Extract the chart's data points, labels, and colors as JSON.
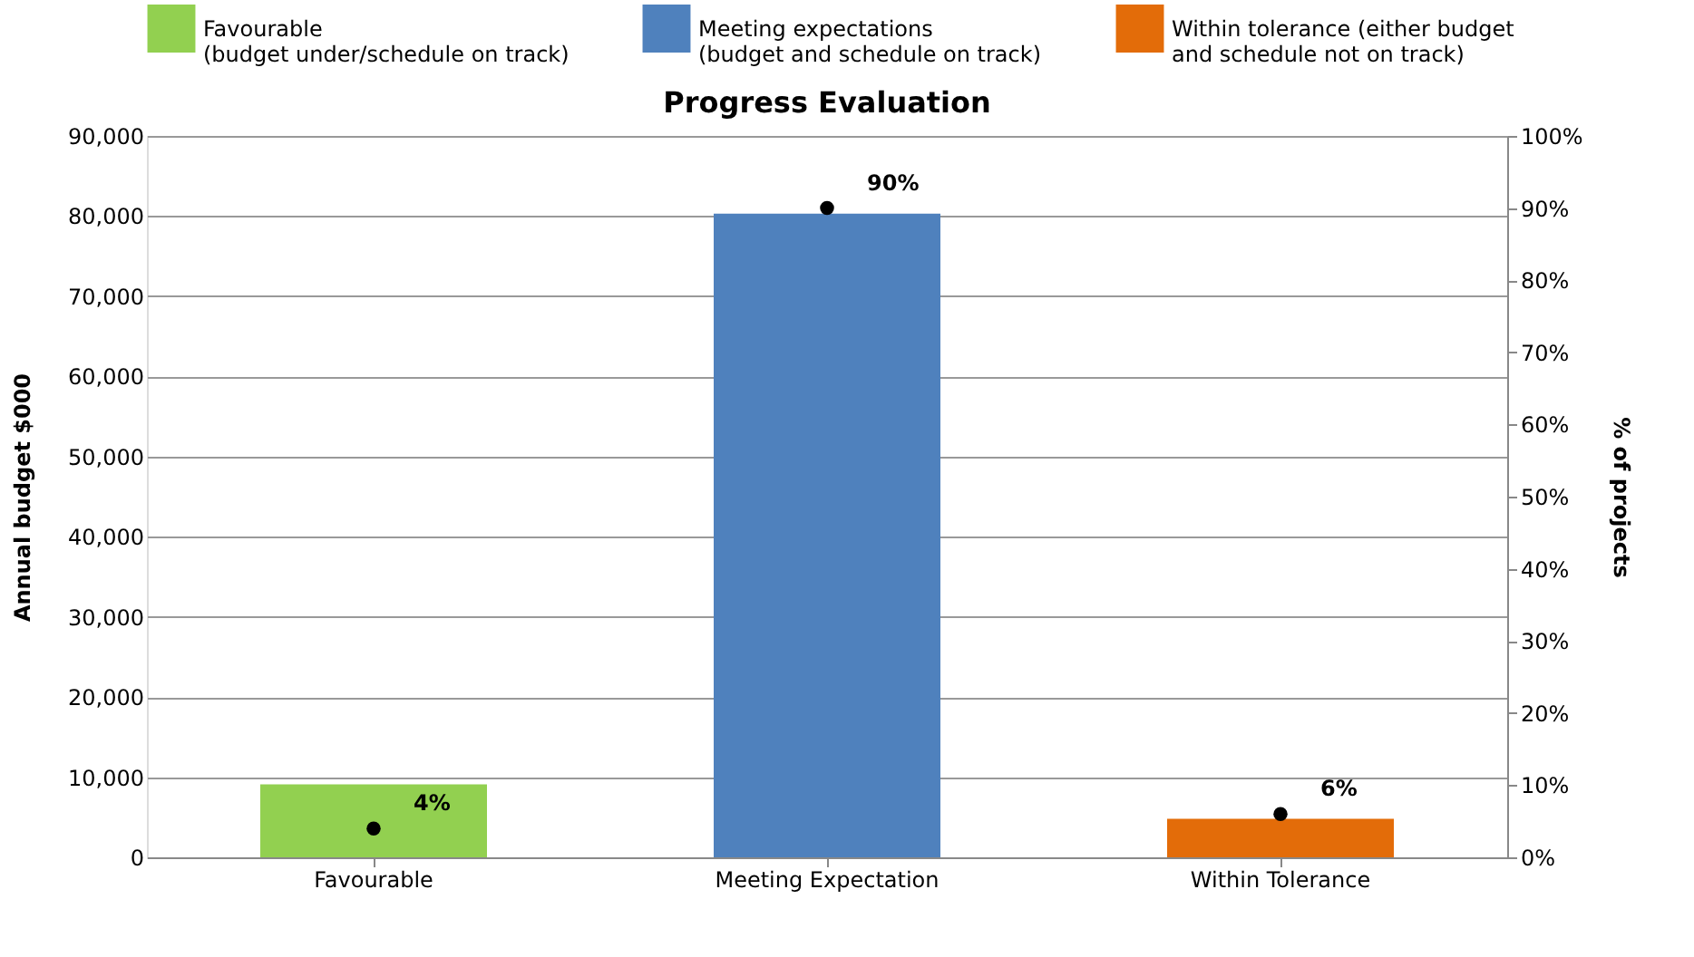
{
  "chart_data": {
    "type": "bar",
    "title": "Progress Evaluation",
    "ylabel": "Annual budget $000",
    "y2label": "% of projects",
    "categories": [
      "Favourable",
      "Meeting Expectation",
      "Within Tolerance"
    ],
    "series": [
      {
        "name": "Favourable\n(budget under/schedule on track)",
        "color": "#92d050",
        "values": [
          9100,
          null,
          null
        ]
      },
      {
        "name": "Meeting expectations\n(budget and schedule on track)",
        "color": "#4f81bd",
        "values": [
          null,
          80300,
          null
        ]
      },
      {
        "name": "Within tolerance (either budget\nand schedule not on track)",
        "color": "#e36c09",
        "values": [
          null,
          null,
          4800
        ]
      },
      {
        "type": "scatter",
        "axis": "y2",
        "color": "#000000",
        "marker": "circle",
        "values": [
          4,
          90,
          6
        ],
        "value_labels": [
          "4%",
          "90%",
          "6%"
        ]
      }
    ],
    "ylim": [
      0,
      90000
    ],
    "yticks": [
      {
        "value": 0,
        "label": "0"
      },
      {
        "value": 10000,
        "label": "10,000"
      },
      {
        "value": 20000,
        "label": "20,000"
      },
      {
        "value": 30000,
        "label": "30,000"
      },
      {
        "value": 40000,
        "label": "40,000"
      },
      {
        "value": 50000,
        "label": "50,000"
      },
      {
        "value": 60000,
        "label": "60,000"
      },
      {
        "value": 70000,
        "label": "70,000"
      },
      {
        "value": 80000,
        "label": "80,000"
      },
      {
        "value": 90000,
        "label": "90,000"
      }
    ],
    "y2lim": [
      0,
      100
    ],
    "y2ticks": [
      {
        "value": 0,
        "label": "0%"
      },
      {
        "value": 10,
        "label": "10%"
      },
      {
        "value": 20,
        "label": "20%"
      },
      {
        "value": 30,
        "label": "30%"
      },
      {
        "value": 40,
        "label": "40%"
      },
      {
        "value": 50,
        "label": "50%"
      },
      {
        "value": 60,
        "label": "60%"
      },
      {
        "value": 70,
        "label": "70%"
      },
      {
        "value": 80,
        "label": "80%"
      },
      {
        "value": 90,
        "label": "90%"
      },
      {
        "value": 100,
        "label": "100%"
      }
    ],
    "grid": "y",
    "legend": "top"
  }
}
